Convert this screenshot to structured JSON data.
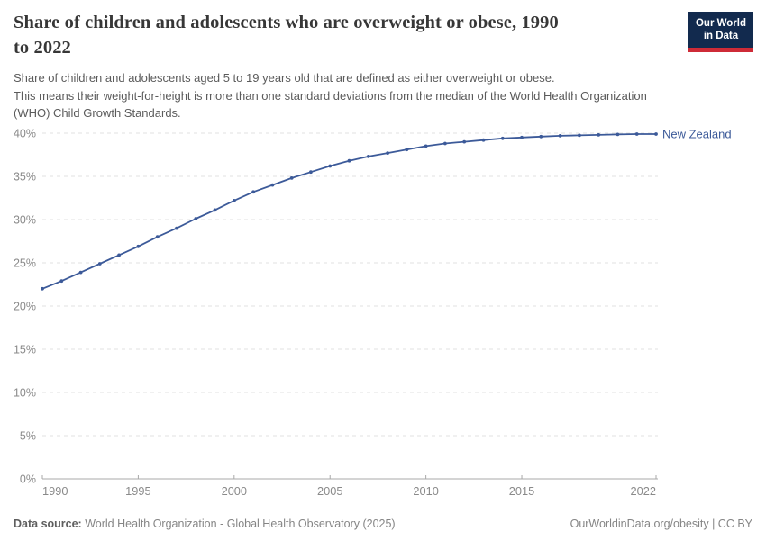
{
  "header": {
    "title": "Share of children and adolescents who are overweight or obese, 1990 to 2022",
    "title_lines": [
      "Share of children and adolescents who are overweight or obese, 1990",
      "to 2022"
    ],
    "subtitle_lines": [
      "Share of children and adolescents aged 5 to 19 years old that are defined as either overweight or obese.",
      "This means their weight-for-height is more than one standard deviations from the median of the World Health Organization",
      "(WHO) Child Growth Standards."
    ],
    "logo": {
      "line1": "Our World",
      "line2": "in Data",
      "bg_color": "#122A4E",
      "bar_color": "#CE2B37"
    }
  },
  "chart_data": {
    "type": "line",
    "title": "Share of children and adolescents who are overweight or obese, 1990 to 2022",
    "unit": "%",
    "xlabel": "",
    "ylabel": "",
    "xlim": [
      1990,
      2022
    ],
    "ylim": [
      0,
      40
    ],
    "yticks": [
      0,
      5,
      10,
      15,
      20,
      25,
      30,
      35,
      40
    ],
    "ytick_suffix": "%",
    "xticks": [
      1990,
      1995,
      2000,
      2005,
      2010,
      2015,
      2022
    ],
    "grid": "horizontal-dashed",
    "legend_position": "end-of-line-label",
    "gridline_color": "#e0e0e0",
    "axis_line_color": "#a8a8a8",
    "tick_label_color": "#8a8a8a",
    "series": [
      {
        "name": "New Zealand",
        "color": "#3C5A99",
        "x": [
          1990,
          1991,
          1992,
          1993,
          1994,
          1995,
          1996,
          1997,
          1998,
          1999,
          2000,
          2001,
          2002,
          2003,
          2004,
          2005,
          2006,
          2007,
          2008,
          2009,
          2010,
          2011,
          2012,
          2013,
          2014,
          2015,
          2016,
          2017,
          2018,
          2019,
          2020,
          2021,
          2022
        ],
        "values": [
          22,
          22.9,
          23.9,
          24.9,
          25.9,
          26.9,
          28,
          29,
          30.1,
          31.1,
          32.2,
          33.2,
          34,
          34.8,
          35.5,
          36.2,
          36.8,
          37.3,
          37.7,
          38.1,
          38.5,
          38.8,
          39,
          39.2,
          39.4,
          39.5,
          39.6,
          39.7,
          39.75,
          39.8,
          39.85,
          39.9,
          39.9
        ]
      }
    ]
  },
  "footer": {
    "datasource_label": "Data source:",
    "datasource_text": "World Health Organization - Global Health Observatory (2025)",
    "license_text": "OurWorldinData.org/obesity | CC BY"
  }
}
